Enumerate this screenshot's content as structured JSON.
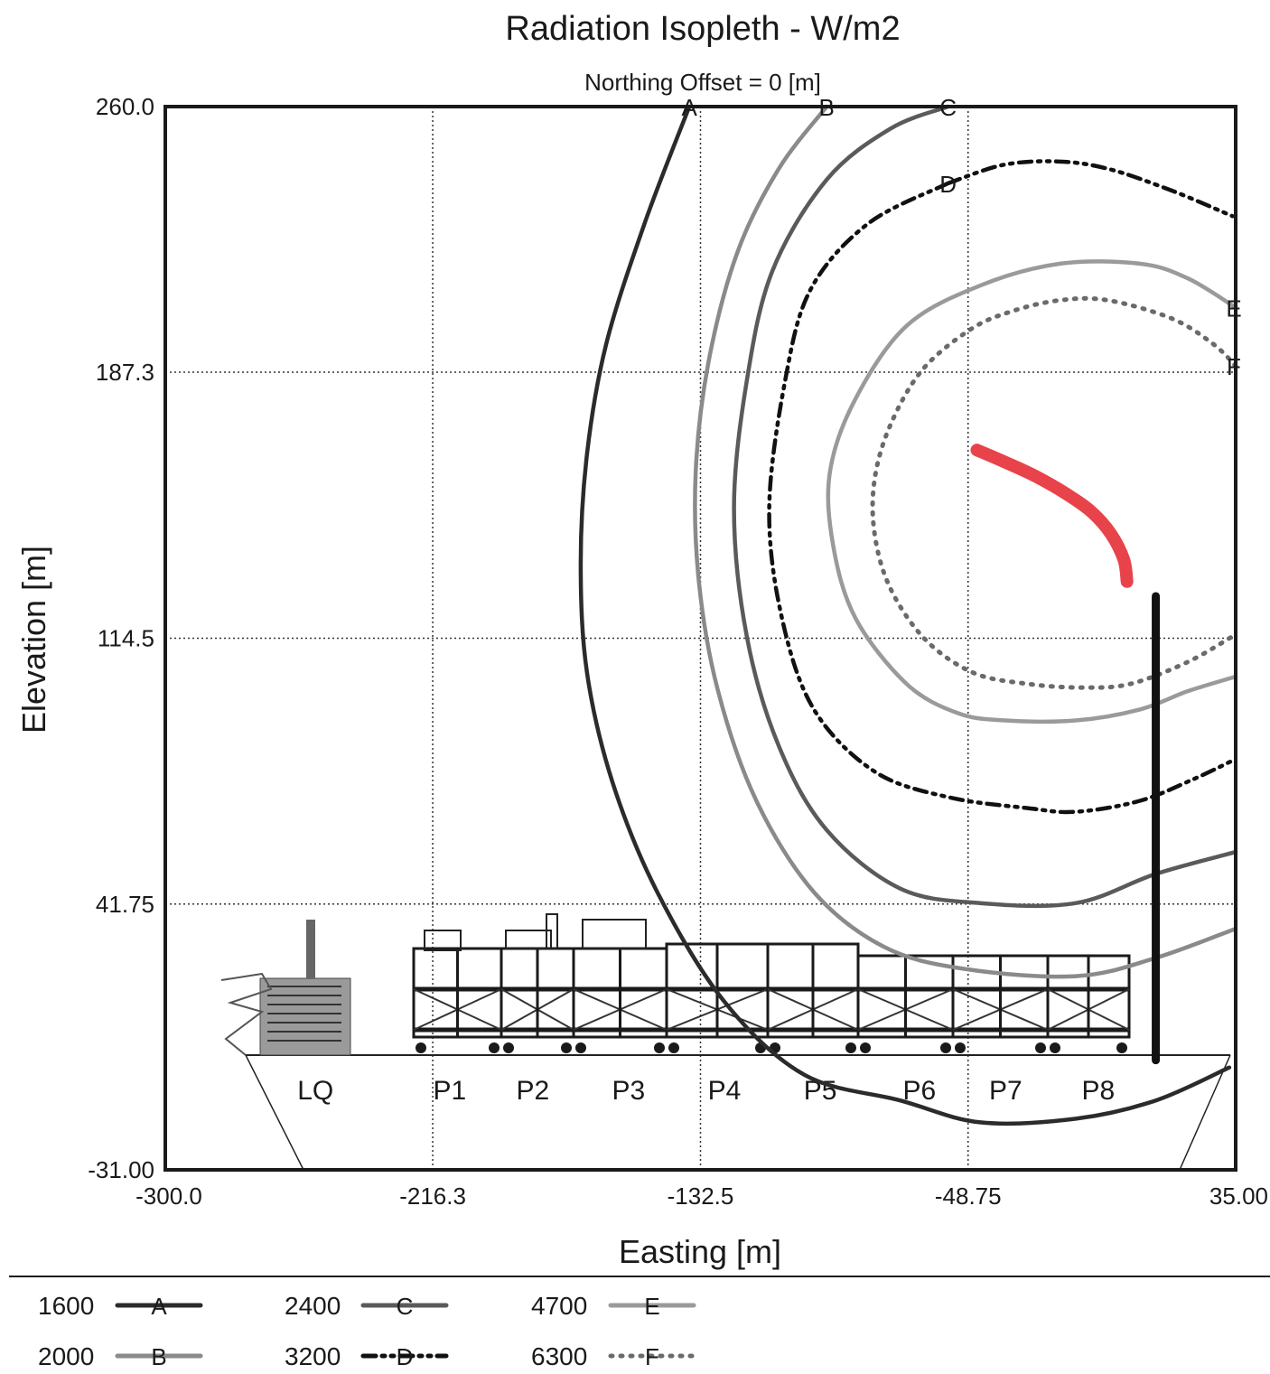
{
  "chart_data": {
    "type": "line",
    "title": "Radiation Isopleth - W/m2",
    "subtitle": "Northing Offset = 0 [m]",
    "xlabel": "Easting [m]",
    "ylabel": "Elevation [m]",
    "xlim": [
      -300.0,
      35.0
    ],
    "ylim": [
      -31.0,
      260.0
    ],
    "x_ticks": [
      "-300.0",
      "-216.3",
      "-132.5",
      "-48.75",
      "35.00"
    ],
    "y_ticks": [
      "260.0",
      "187.3",
      "114.5",
      "41.75",
      "-31.00"
    ],
    "x_tick_values": [
      -300.0,
      -216.3,
      -132.5,
      -48.75,
      35.0
    ],
    "y_tick_values": [
      260.0,
      187.3,
      114.5,
      41.75,
      -31.0
    ],
    "grid": true,
    "legend_position": "bottom",
    "modules": [
      "LQ",
      "P1",
      "P2",
      "P3",
      "P4",
      "P5",
      "P6",
      "P7",
      "P8"
    ],
    "module_label_x": [
      -253,
      -211,
      -185,
      -155,
      -125,
      -95,
      -64,
      -37,
      -8
    ],
    "series": [
      {
        "name": "1600",
        "marker": "A",
        "style": "solid",
        "color": "#2b2b2b",
        "points": [
          [
            -136,
            260
          ],
          [
            -150,
            228
          ],
          [
            -162,
            195
          ],
          [
            -168,
            165
          ],
          [
            -170,
            135
          ],
          [
            -168,
            105
          ],
          [
            -160,
            75
          ],
          [
            -146,
            45
          ],
          [
            -125,
            15
          ],
          [
            -100,
            -5
          ],
          [
            -70,
            -12
          ],
          [
            -45,
            -18
          ],
          [
            -15,
            -17
          ],
          [
            10,
            -12
          ],
          [
            33,
            -3
          ]
        ]
      },
      {
        "name": "2000",
        "marker": "B",
        "style": "solid",
        "color": "#8a8a8a",
        "points": [
          [
            -93,
            260
          ],
          [
            -108,
            243
          ],
          [
            -121,
            220
          ],
          [
            -130,
            190
          ],
          [
            -134,
            160
          ],
          [
            -133,
            130
          ],
          [
            -127,
            100
          ],
          [
            -115,
            70
          ],
          [
            -97,
            45
          ],
          [
            -75,
            30
          ],
          [
            -50,
            24
          ],
          [
            -15,
            22
          ],
          [
            10,
            27
          ],
          [
            35,
            35
          ]
        ]
      },
      {
        "name": "2400",
        "marker": "C",
        "style": "solid",
        "color": "#5a5a5a",
        "points": [
          [
            -55,
            260
          ],
          [
            -73,
            254
          ],
          [
            -93,
            240
          ],
          [
            -110,
            215
          ],
          [
            -118,
            185
          ],
          [
            -122,
            150
          ],
          [
            -118,
            115
          ],
          [
            -108,
            85
          ],
          [
            -93,
            62
          ],
          [
            -70,
            46
          ],
          [
            -45,
            42
          ],
          [
            -15,
            42
          ],
          [
            10,
            50
          ],
          [
            35,
            56
          ]
        ]
      },
      {
        "name": "3200",
        "marker": "D",
        "style": "dashdot",
        "color": "#111111",
        "points": [
          [
            -55,
            239
          ],
          [
            -38,
            244
          ],
          [
            -21,
            245
          ],
          [
            -5,
            243
          ],
          [
            15,
            237
          ],
          [
            34,
            230
          ],
          [
            -55,
            239
          ],
          [
            -80,
            228
          ],
          [
            -98,
            210
          ],
          [
            -106,
            185
          ],
          [
            -111,
            150
          ],
          [
            -107,
            120
          ],
          [
            -97,
            95
          ],
          [
            -78,
            78
          ],
          [
            -55,
            71
          ],
          [
            -30,
            68
          ],
          [
            -15,
            67
          ],
          [
            5,
            70
          ],
          [
            22,
            76
          ],
          [
            34,
            81
          ]
        ]
      },
      {
        "name": "4700",
        "marker": "E",
        "style": "solid",
        "color": "#9a9a9a",
        "points": [
          [
            35,
            205
          ],
          [
            20,
            213
          ],
          [
            5,
            217
          ],
          [
            -20,
            217
          ],
          [
            -45,
            211
          ],
          [
            -68,
            200
          ],
          [
            -84,
            180
          ],
          [
            -92,
            160
          ],
          [
            -91,
            140
          ],
          [
            -84,
            120
          ],
          [
            -68,
            102
          ],
          [
            -52,
            94
          ],
          [
            -37,
            92
          ],
          [
            -15,
            92
          ],
          [
            5,
            95
          ],
          [
            20,
            100
          ],
          [
            35,
            104
          ]
        ]
      },
      {
        "name": "6300",
        "marker": "F",
        "style": "dotted",
        "color": "#6a6a6a",
        "points": [
          [
            35,
            189
          ],
          [
            28,
            195
          ],
          [
            15,
            202
          ],
          [
            -5,
            207
          ],
          [
            -20,
            207
          ],
          [
            -35,
            204
          ],
          [
            -48,
            199
          ],
          [
            -63,
            188
          ],
          [
            -73,
            173
          ],
          [
            -78,
            158
          ],
          [
            -78,
            143
          ],
          [
            -73,
            128
          ],
          [
            -62,
            114
          ],
          [
            -47,
            105
          ],
          [
            -30,
            102
          ],
          [
            -13,
            101
          ],
          [
            2,
            102
          ],
          [
            20,
            108
          ],
          [
            34,
            115
          ]
        ]
      }
    ],
    "flame": {
      "color": "#e8434a",
      "points": [
        [
          -46,
          166
        ],
        [
          -38,
          163
        ],
        [
          -28,
          159
        ],
        [
          -18,
          154
        ],
        [
          -10,
          149
        ],
        [
          -4,
          143
        ],
        [
          0,
          136
        ],
        [
          1,
          130
        ]
      ]
    },
    "flare_stack": {
      "color": "#111111",
      "x": 10,
      "y_bottom": -1,
      "y_top": 126
    },
    "legend": [
      {
        "label": "1600",
        "marker": "A",
        "style": "solid",
        "color": "#2b2b2b"
      },
      {
        "label": "2400",
        "marker": "C",
        "style": "solid",
        "color": "#5a5a5a"
      },
      {
        "label": "4700",
        "marker": "E",
        "style": "solid",
        "color": "#9a9a9a"
      },
      {
        "label": "2000",
        "marker": "B",
        "style": "solid",
        "color": "#8a8a8a"
      },
      {
        "label": "3200",
        "marker": "D",
        "style": "dashdot",
        "color": "#111111"
      },
      {
        "label": "6300",
        "marker": "F",
        "style": "dotted",
        "color": "#6a6a6a"
      }
    ]
  }
}
